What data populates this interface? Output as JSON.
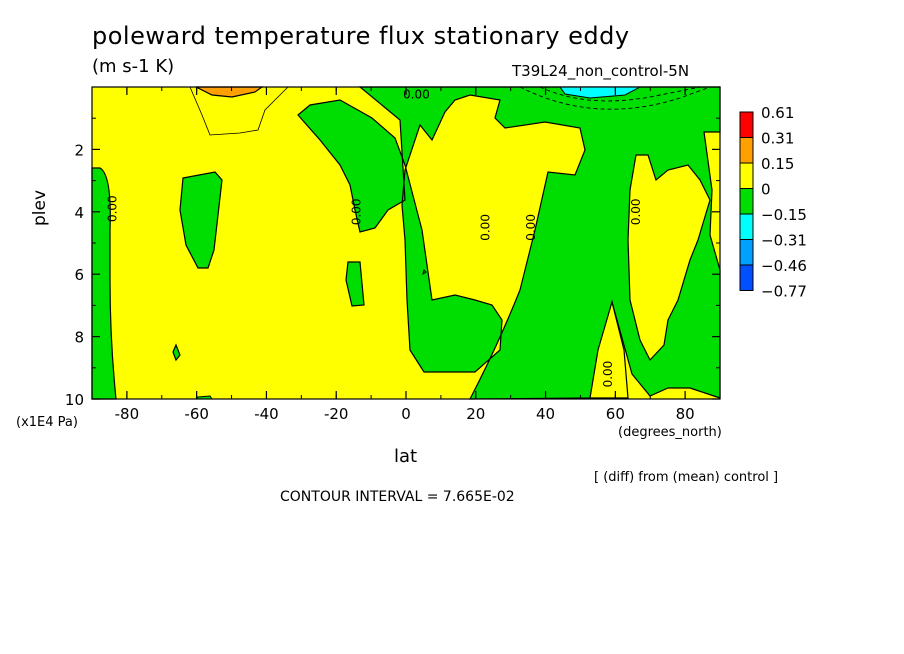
{
  "chart_data": {
    "type": "heatmap",
    "title": "poleward temperature flux stationary eddy",
    "units": "(m s-1 K)",
    "run_label": "T39L24_non_control-5N",
    "xlabel": "lat",
    "xunit": "(degrees_north)",
    "ylabel": "plev",
    "yunit": "(x1E4 Pa)",
    "xlim": [
      -90,
      90
    ],
    "ylim": [
      10,
      0
    ],
    "xticks": [
      {
        "v": -80,
        "label": "-80"
      },
      {
        "v": -60,
        "label": "-60"
      },
      {
        "v": -40,
        "label": "-40"
      },
      {
        "v": -20,
        "label": "-20"
      },
      {
        "v": 0,
        "label": "0"
      },
      {
        "v": 20,
        "label": "20"
      },
      {
        "v": 40,
        "label": "40"
      },
      {
        "v": 60,
        "label": "60"
      },
      {
        "v": 80,
        "label": "80"
      }
    ],
    "yticks": [
      {
        "v": 2,
        "label": "2"
      },
      {
        "v": 4,
        "label": "4"
      },
      {
        "v": 6,
        "label": "6"
      },
      {
        "v": 8,
        "label": "8"
      },
      {
        "v": 10,
        "label": "10"
      }
    ],
    "colorbar": {
      "labels": [
        "0.61",
        "0.31",
        "0.15",
        "0",
        "−0.15",
        "−0.31",
        "−0.46",
        "−0.77"
      ],
      "colors": [
        "#ff0000",
        "#ffa000",
        "#ffff00",
        "#00dd00",
        "#00ffff",
        "#00a0ff",
        "#0050ff"
      ]
    },
    "contour_labels": [
      {
        "text": "0.00",
        "lon": 3,
        "lev": 0.25,
        "rot": 0
      },
      {
        "text": "0.00",
        "lon": -84,
        "lev": 3.9,
        "rot": -90
      },
      {
        "text": "0.00",
        "lon": -14,
        "lev": 4.0,
        "rot": -90
      },
      {
        "text": "0.00",
        "lon": 23,
        "lev": 4.5,
        "rot": -90
      },
      {
        "text": "0.00",
        "lon": 36,
        "lev": 4.5,
        "rot": -90
      },
      {
        "text": "0.00",
        "lon": 66,
        "lev": 4.0,
        "rot": -90
      },
      {
        "text": "0.00",
        "lon": 58,
        "lev": 9.2,
        "rot": -90
      }
    ],
    "diff_note": "[ (diff) from (mean) control ]",
    "contour_interval": "CONTOUR INTERVAL = 7.665E-02"
  }
}
